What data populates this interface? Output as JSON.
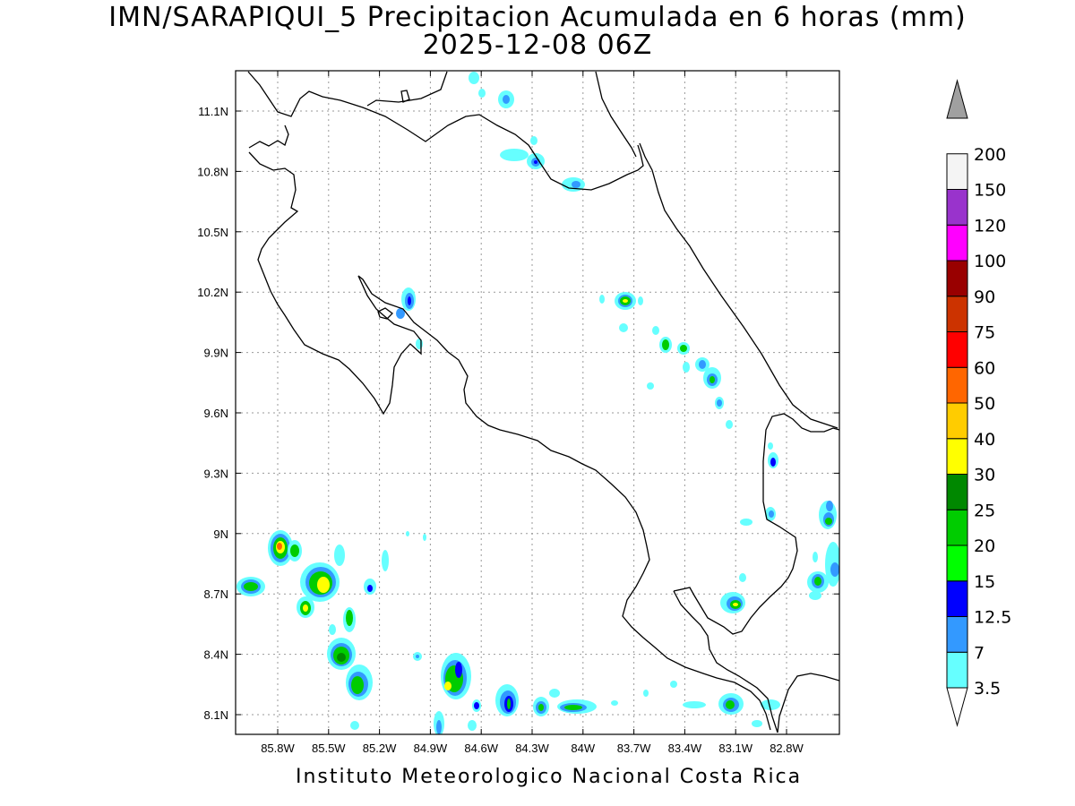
{
  "title": {
    "line1": "IMN/SARAPIQUI_5 Precipitacion Acumulada en 6 horas (mm)",
    "line2": "2025-12-08 06Z"
  },
  "footer": "Instituto Meteorologico Nacional Costa Rica",
  "axes": {
    "lon_ticks": [
      "85.8W",
      "85.5W",
      "85.2W",
      "84.9W",
      "84.6W",
      "84.3W",
      "84W",
      "83.7W",
      "83.4W",
      "83.1W",
      "82.8W"
    ],
    "lat_ticks": [
      "11.1N",
      "10.8N",
      "10.5N",
      "10.2N",
      "9.9N",
      "9.6N",
      "9.3N",
      "9N",
      "8.7N",
      "8.4N",
      "8.1N"
    ],
    "lon_values": [
      -85.8,
      -85.5,
      -85.2,
      -84.9,
      -84.6,
      -84.3,
      -84.0,
      -83.7,
      -83.4,
      -83.1,
      -82.8
    ],
    "lat_values": [
      11.1,
      10.8,
      10.5,
      10.2,
      9.9,
      9.6,
      9.3,
      9.0,
      8.7,
      8.4,
      8.1
    ],
    "grid": true
  },
  "colorbar": {
    "labels": [
      "3.5",
      "7",
      "12.5",
      "15",
      "20",
      "25",
      "30",
      "40",
      "50",
      "60",
      "75",
      "90",
      "100",
      "120",
      "150",
      "200"
    ],
    "colors": [
      "#ffffff",
      "#66ffff",
      "#3399ff",
      "#0000ff",
      "#00ff00",
      "#00cc00",
      "#008800",
      "#ffff00",
      "#ffcc00",
      "#ff6600",
      "#ff0000",
      "#cc3300",
      "#990000",
      "#ff00ff",
      "#9933cc",
      "#f4f4f4",
      "#a0a0a0"
    ]
  }
}
